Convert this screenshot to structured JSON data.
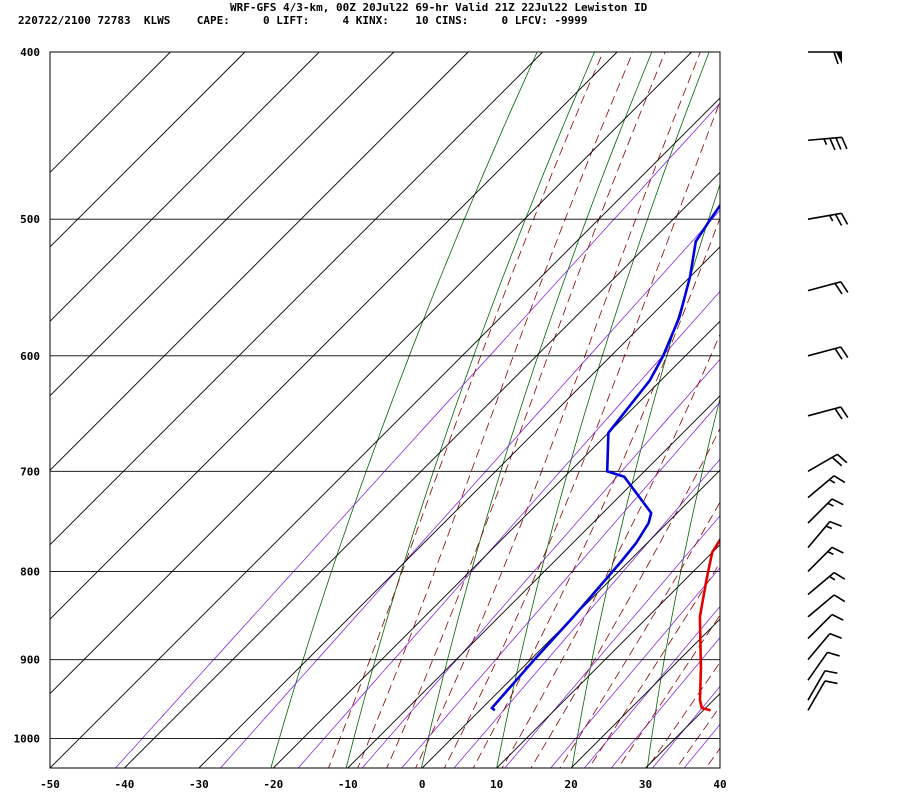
{
  "header": {
    "title": "WRF-GFS 4/3-km, 00Z 20Jul22 69-hr Valid 21Z 22Jul22 Lewiston ID",
    "meta": "220722/2100 72783  KLWS    CAPE:     0 LIFT:     4 KINX:    10 CINS:     0 LFCV: -9999"
  },
  "chart_data": {
    "type": "line",
    "title": "WRF-GFS 4/3-km, 00Z 20Jul22 69-hr Valid 21Z 22Jul22 Lewiston ID",
    "xlabel": "",
    "ylabel": "",
    "xlim": [
      -50,
      40
    ],
    "ylim": [
      1040,
      400
    ],
    "y_scale": "log-pressure",
    "x_ticks": [
      -50,
      -40,
      -30,
      -20,
      -10,
      0,
      10,
      20,
      30,
      40
    ],
    "x_tick_labels": [
      "-50",
      "-40",
      "-30",
      "-20",
      "-10",
      "0",
      "10",
      "20",
      "30",
      "40"
    ],
    "y_ticks": [
      400,
      500,
      600,
      700,
      800,
      900,
      1000
    ],
    "y_tick_labels": [
      "400",
      "500",
      "600",
      "700",
      "800",
      "900",
      "1000"
    ],
    "grid": true,
    "colors": {
      "temperature": "#e00000",
      "dewpoint": "#0000dd",
      "isotherm": "#000000",
      "dry_adiabat": "#006400",
      "moist_adiabat": "#8b0000",
      "mixing_ratio": "#8a2be2"
    },
    "series": [
      {
        "points": [
          [
            31,
            963
          ],
          [
            29.5,
            960
          ],
          [
            28.2,
            950
          ],
          [
            24,
            910
          ],
          [
            17,
            850
          ],
          [
            13,
            810
          ],
          [
            10,
            780
          ],
          [
            9,
            760
          ],
          [
            7,
            720
          ],
          [
            6.5,
            700
          ],
          [
            3,
            660
          ],
          [
            1,
            630
          ],
          [
            -2,
            600
          ],
          [
            -5,
            570
          ],
          [
            -9,
            530
          ],
          [
            -12,
            500
          ],
          [
            -19,
            440
          ],
          [
            -24,
            400
          ]
        ]
      },
      {
        "points": [
          [
            2,
            963
          ],
          [
            1.3,
            960
          ],
          [
            0.5,
            900
          ],
          [
            0,
            850
          ],
          [
            -1,
            790
          ],
          [
            -1.5,
            770
          ],
          [
            -2.5,
            750
          ],
          [
            -3.5,
            740
          ],
          [
            -12,
            705
          ],
          [
            -15,
            700
          ],
          [
            -20,
            665
          ],
          [
            -21.5,
            620
          ],
          [
            -23,
            600
          ],
          [
            -26,
            570
          ],
          [
            -30,
            540
          ],
          [
            -34,
            515
          ],
          [
            -35,
            500
          ],
          [
            -37.5,
            460
          ],
          [
            -38,
            430
          ],
          [
            -39,
            400
          ]
        ]
      }
    ],
    "wind_barbs": [
      {
        "pressure": 400,
        "speed_kt": 60,
        "dir_deg": 270
      },
      {
        "pressure": 450,
        "speed_kt": 35,
        "dir_deg": 265
      },
      {
        "pressure": 500,
        "speed_kt": 25,
        "dir_deg": 260
      },
      {
        "pressure": 550,
        "speed_kt": 20,
        "dir_deg": 255
      },
      {
        "pressure": 600,
        "speed_kt": 20,
        "dir_deg": 255
      },
      {
        "pressure": 650,
        "speed_kt": 20,
        "dir_deg": 255
      },
      {
        "pressure": 700,
        "speed_kt": 20,
        "dir_deg": 240
      },
      {
        "pressure": 725,
        "speed_kt": 15,
        "dir_deg": 230
      },
      {
        "pressure": 750,
        "speed_kt": 15,
        "dir_deg": 225
      },
      {
        "pressure": 775,
        "speed_kt": 15,
        "dir_deg": 220
      },
      {
        "pressure": 800,
        "speed_kt": 15,
        "dir_deg": 225
      },
      {
        "pressure": 825,
        "speed_kt": 15,
        "dir_deg": 230
      },
      {
        "pressure": 850,
        "speed_kt": 10,
        "dir_deg": 230
      },
      {
        "pressure": 875,
        "speed_kt": 10,
        "dir_deg": 225
      },
      {
        "pressure": 900,
        "speed_kt": 10,
        "dir_deg": 220
      },
      {
        "pressure": 925,
        "speed_kt": 10,
        "dir_deg": 215
      },
      {
        "pressure": 950,
        "speed_kt": 10,
        "dir_deg": 210
      },
      {
        "pressure": 963,
        "speed_kt": 10,
        "dir_deg": 210
      }
    ]
  }
}
